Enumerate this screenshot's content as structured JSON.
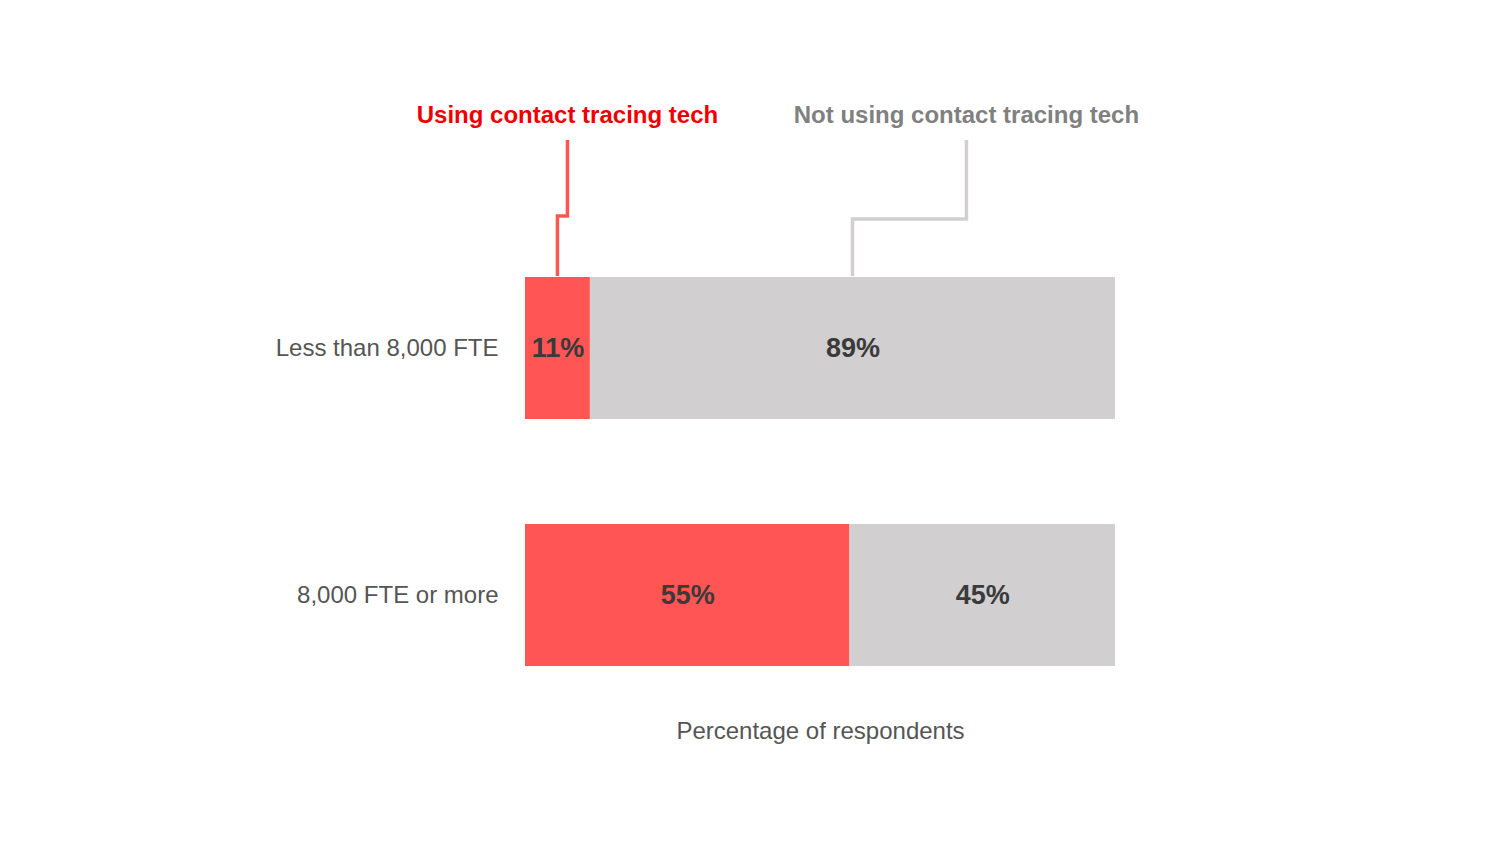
{
  "chart_data": {
    "type": "bar",
    "orientation": "horizontal",
    "stacked": true,
    "data_labels": true,
    "tick_labels": "y",
    "categories": [
      "Less than 8,000 FTE",
      "8,000 FTE or more"
    ],
    "series": [
      {
        "name": "Using contact tracing tech",
        "color": "#ff5555",
        "values": [
          11,
          55
        ],
        "value_labels": [
          "11%",
          "55%"
        ]
      },
      {
        "name": "Not using contact tracing tech",
        "color": "#d1cfd0",
        "values": [
          89,
          45
        ],
        "value_labels": [
          "89%",
          "45%"
        ]
      }
    ],
    "xlabel": "Percentage of respondents",
    "xlim": [
      0,
      100
    ]
  }
}
